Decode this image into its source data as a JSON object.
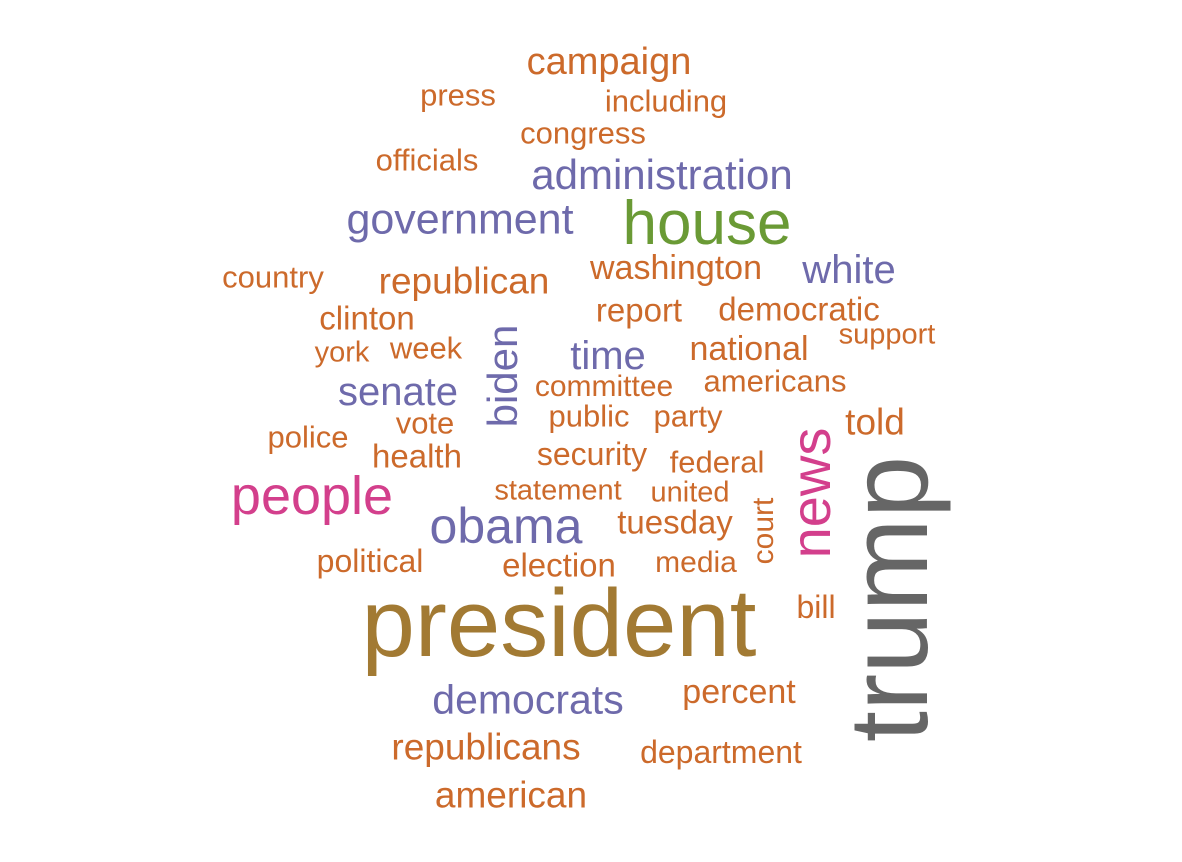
{
  "palette": {
    "orange": "#cc6a2b",
    "purple": "#6e6aab",
    "green": "#6a9a35",
    "magenta": "#d33f8c",
    "olive": "#a27a33",
    "gray": "#666666"
  },
  "words": [
    {
      "text": "trump",
      "color": "gray",
      "rotated": true
    },
    {
      "text": "president",
      "color": "olive"
    },
    {
      "text": "house",
      "color": "green"
    },
    {
      "text": "people",
      "color": "magenta"
    },
    {
      "text": "news",
      "color": "magenta",
      "rotated": true
    },
    {
      "text": "obama",
      "color": "purple"
    },
    {
      "text": "government",
      "color": "purple"
    },
    {
      "text": "administration",
      "color": "purple"
    },
    {
      "text": "white",
      "color": "purple"
    },
    {
      "text": "democrats",
      "color": "purple"
    },
    {
      "text": "senate",
      "color": "purple"
    },
    {
      "text": "biden",
      "color": "purple",
      "rotated": true
    },
    {
      "text": "time",
      "color": "purple"
    },
    {
      "text": "campaign",
      "color": "orange"
    },
    {
      "text": "republican",
      "color": "orange"
    },
    {
      "text": "republicans",
      "color": "orange"
    },
    {
      "text": "american",
      "color": "orange"
    },
    {
      "text": "washington",
      "color": "orange"
    },
    {
      "text": "national",
      "color": "orange"
    },
    {
      "text": "percent",
      "color": "orange"
    },
    {
      "text": "told",
      "color": "orange"
    },
    {
      "text": "report",
      "color": "orange"
    },
    {
      "text": "democratic",
      "color": "orange"
    },
    {
      "text": "americans",
      "color": "orange"
    },
    {
      "text": "election",
      "color": "orange"
    },
    {
      "text": "department",
      "color": "orange"
    },
    {
      "text": "including",
      "color": "orange"
    },
    {
      "text": "congress",
      "color": "orange"
    },
    {
      "text": "country",
      "color": "orange"
    },
    {
      "text": "officials",
      "color": "orange"
    },
    {
      "text": "press",
      "color": "orange"
    },
    {
      "text": "clinton",
      "color": "orange"
    },
    {
      "text": "week",
      "color": "orange"
    },
    {
      "text": "support",
      "color": "orange"
    },
    {
      "text": "york",
      "color": "orange"
    },
    {
      "text": "committee",
      "color": "orange"
    },
    {
      "text": "public",
      "color": "orange"
    },
    {
      "text": "party",
      "color": "orange"
    },
    {
      "text": "vote",
      "color": "orange"
    },
    {
      "text": "police",
      "color": "orange"
    },
    {
      "text": "health",
      "color": "orange"
    },
    {
      "text": "security",
      "color": "orange"
    },
    {
      "text": "federal",
      "color": "orange"
    },
    {
      "text": "statement",
      "color": "orange"
    },
    {
      "text": "united",
      "color": "orange"
    },
    {
      "text": "court",
      "color": "orange",
      "rotated": true
    },
    {
      "text": "tuesday",
      "color": "orange"
    },
    {
      "text": "political",
      "color": "orange"
    },
    {
      "text": "media",
      "color": "orange"
    },
    {
      "text": "bill",
      "color": "orange"
    }
  ]
}
